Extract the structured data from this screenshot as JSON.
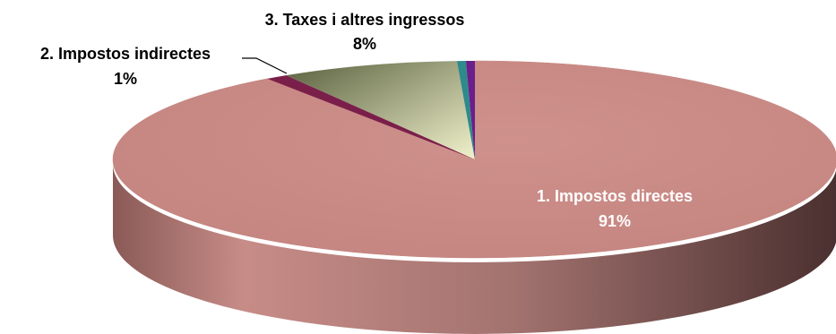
{
  "chart_data": {
    "type": "pie",
    "style": "3d",
    "slices": [
      {
        "label": "1. Impostos directes",
        "percent_label": "91%",
        "value": 91,
        "color": "#c78c87"
      },
      {
        "label": "2. Impostos indirectes",
        "percent_label": "1%",
        "value": 1,
        "color": "#7a1f4a"
      },
      {
        "label": "3. Taxes i altres ingressos",
        "percent_label": "8%",
        "value": 8,
        "color": "#eef0c8"
      },
      {
        "label": "",
        "percent_label": "",
        "value": 0.4,
        "color": "#2f8a8a"
      },
      {
        "label": "",
        "percent_label": "",
        "value": 0.4,
        "color": "#6a1f8a"
      }
    ],
    "legend": "none",
    "title": ""
  }
}
